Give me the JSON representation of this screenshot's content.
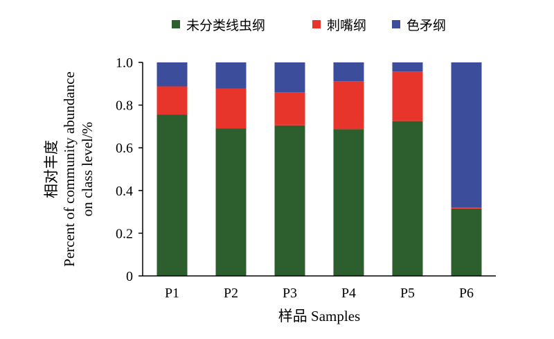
{
  "chart_data": {
    "type": "bar",
    "stacked": true,
    "categories": [
      "P1",
      "P2",
      "P3",
      "P4",
      "P5",
      "P6"
    ],
    "series": [
      {
        "name": "未分类线虫纲",
        "color": "#2d5f2e",
        "values": [
          0.755,
          0.69,
          0.705,
          0.687,
          0.725,
          0.315
        ]
      },
      {
        "name": "刺嘴纲",
        "color": "#e8352b",
        "values": [
          0.133,
          0.187,
          0.155,
          0.225,
          0.232,
          0.005
        ]
      },
      {
        "name": "色矛纲",
        "color": "#3b4d9b",
        "values": [
          0.112,
          0.123,
          0.14,
          0.088,
          0.043,
          0.68
        ]
      }
    ],
    "xlabel": "样品 Samples",
    "ylabel_lines": [
      "相对丰度",
      "Percent of community abundance",
      "on class level/%"
    ],
    "ylim": [
      0,
      1.0
    ],
    "yticks": [
      "0",
      "0.2",
      "0.4",
      "0.6",
      "0.8",
      "1.0"
    ],
    "legend_position": "top",
    "grid": false
  }
}
